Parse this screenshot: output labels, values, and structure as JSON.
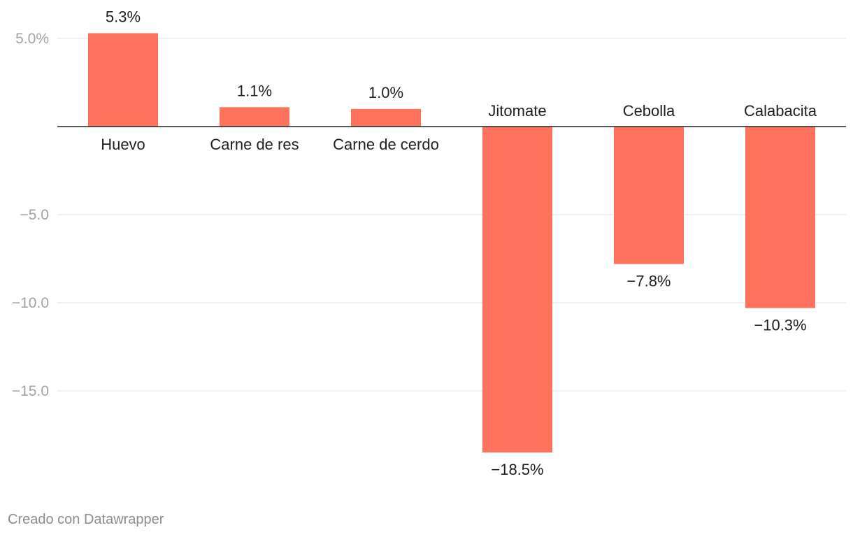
{
  "chart_data": {
    "type": "bar",
    "categories": [
      "Huevo",
      "Carne de res",
      "Carne de cerdo",
      "Jitomate",
      "Cebolla",
      "Calabacita"
    ],
    "values": [
      5.3,
      1.1,
      1.0,
      -18.5,
      -7.8,
      -10.3
    ],
    "value_labels": [
      "5.3%",
      "1.1%",
      "1.0%",
      "−18.5%",
      "−7.8%",
      "−10.3%"
    ],
    "y_ticks": [
      5,
      -5,
      -10,
      -15
    ],
    "y_tick_labels": [
      "5.0%",
      "−5.0",
      "−10.0",
      "−15.0"
    ],
    "ylim": [
      -20,
      5.6
    ],
    "grid": true,
    "bar_color": "#ff735e",
    "title": "",
    "xlabel": "",
    "ylabel": ""
  },
  "footer": {
    "credit": "Creado con Datawrapper"
  }
}
